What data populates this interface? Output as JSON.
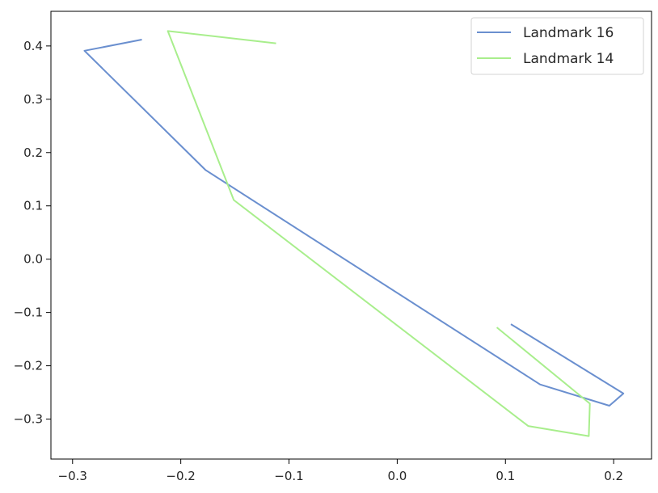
{
  "chart_data": {
    "type": "line",
    "title": "",
    "xlabel": "",
    "ylabel": "",
    "xlim": [
      -0.32,
      0.235
    ],
    "ylim": [
      -0.375,
      0.465
    ],
    "legend": "top-right",
    "grid": false,
    "x_ticks": [
      -0.3,
      -0.2,
      -0.1,
      0.0,
      0.1,
      0.2
    ],
    "y_ticks": [
      -0.3,
      -0.2,
      -0.1,
      0.0,
      0.1,
      0.2,
      0.3,
      0.4
    ],
    "x_tick_labels": [
      "−0.3",
      "−0.2",
      "−0.1",
      "0.0",
      "0.1",
      "0.2"
    ],
    "y_tick_labels": [
      "−0.3",
      "−0.2",
      "−0.1",
      "0.0",
      "0.1",
      "0.2",
      "0.3",
      "0.4"
    ],
    "series": [
      {
        "name": "Landmark 16",
        "color": "#6a8fcf",
        "x": [
          -0.236,
          -0.289,
          -0.177,
          0.132,
          0.196,
          0.209,
          0.105
        ],
        "y": [
          0.412,
          0.391,
          0.167,
          -0.235,
          -0.275,
          -0.252,
          -0.122
        ]
      },
      {
        "name": "Landmark 14",
        "color": "#a8ee8c",
        "x": [
          -0.112,
          -0.212,
          -0.151,
          0.121,
          0.177,
          0.178,
          0.092
        ],
        "y": [
          0.405,
          0.428,
          0.111,
          -0.313,
          -0.332,
          -0.271,
          -0.128
        ]
      }
    ]
  }
}
